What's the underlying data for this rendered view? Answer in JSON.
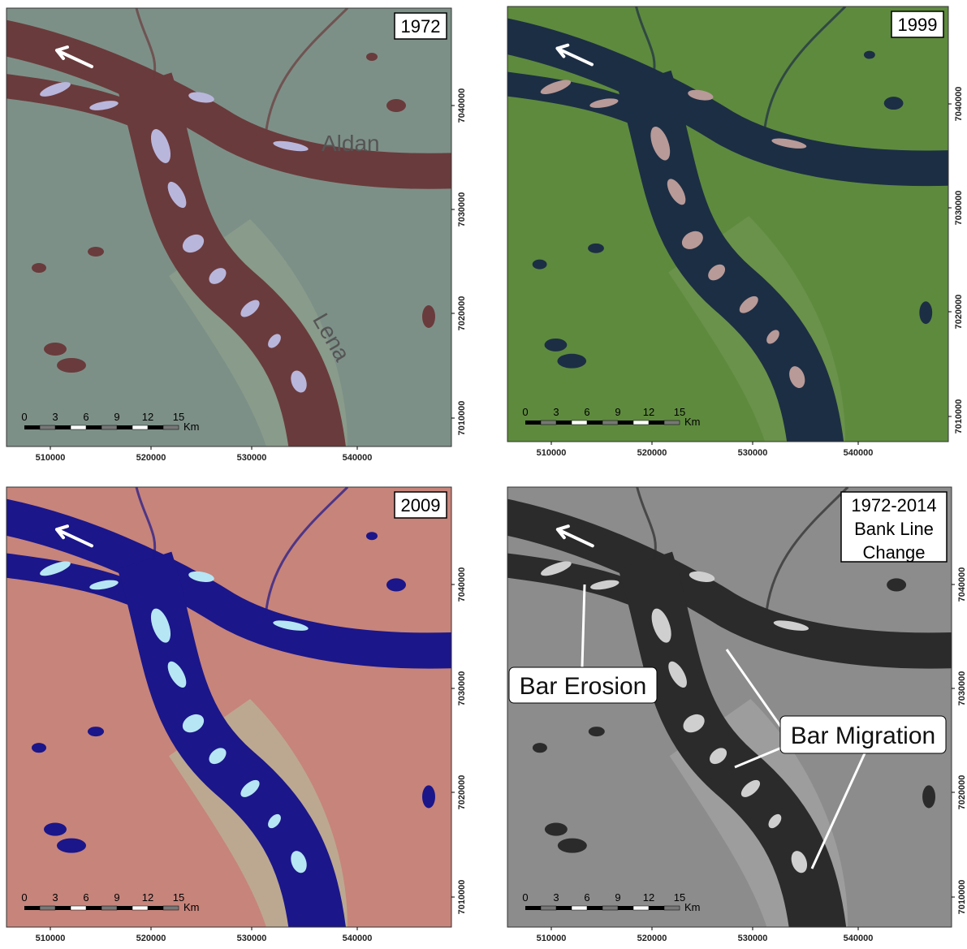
{
  "panels": [
    {
      "label": [
        "1972"
      ],
      "river_names": [
        "Aldan",
        "Lena"
      ],
      "scale_bar": {
        "ticks": [
          0,
          3,
          6,
          9,
          12,
          15
        ],
        "unit": "Km"
      },
      "x_ticks": [
        510000,
        520000,
        530000,
        540000
      ],
      "y_ticks": [
        7040000,
        7030000,
        7020000,
        7010000
      ]
    },
    {
      "label": [
        "1999"
      ],
      "scale_bar": {
        "ticks": [
          0,
          3,
          6,
          9,
          12,
          15
        ],
        "unit": "Km"
      },
      "x_ticks": [
        510000,
        520000,
        530000,
        540000
      ],
      "y_ticks": [
        7040000,
        7030000,
        7020000,
        7010000
      ]
    },
    {
      "label": [
        "2009"
      ],
      "scale_bar": {
        "ticks": [
          0,
          3,
          6,
          9,
          12,
          15
        ],
        "unit": "Km"
      },
      "x_ticks": [
        510000,
        520000,
        530000,
        540000
      ],
      "y_ticks": [
        7040000,
        7030000,
        7020000,
        7010000
      ]
    },
    {
      "label": [
        "1972-2014",
        "Bank Line",
        "Change"
      ],
      "callouts": [
        "Bar Erosion",
        "Bar Migration"
      ],
      "scale_bar": {
        "ticks": [
          0,
          3,
          6,
          9,
          12,
          15
        ],
        "unit": "Km"
      },
      "x_ticks": [
        510000,
        520000,
        530000,
        540000
      ],
      "y_ticks": [
        7040000,
        7030000,
        7020000,
        7010000
      ]
    }
  ]
}
